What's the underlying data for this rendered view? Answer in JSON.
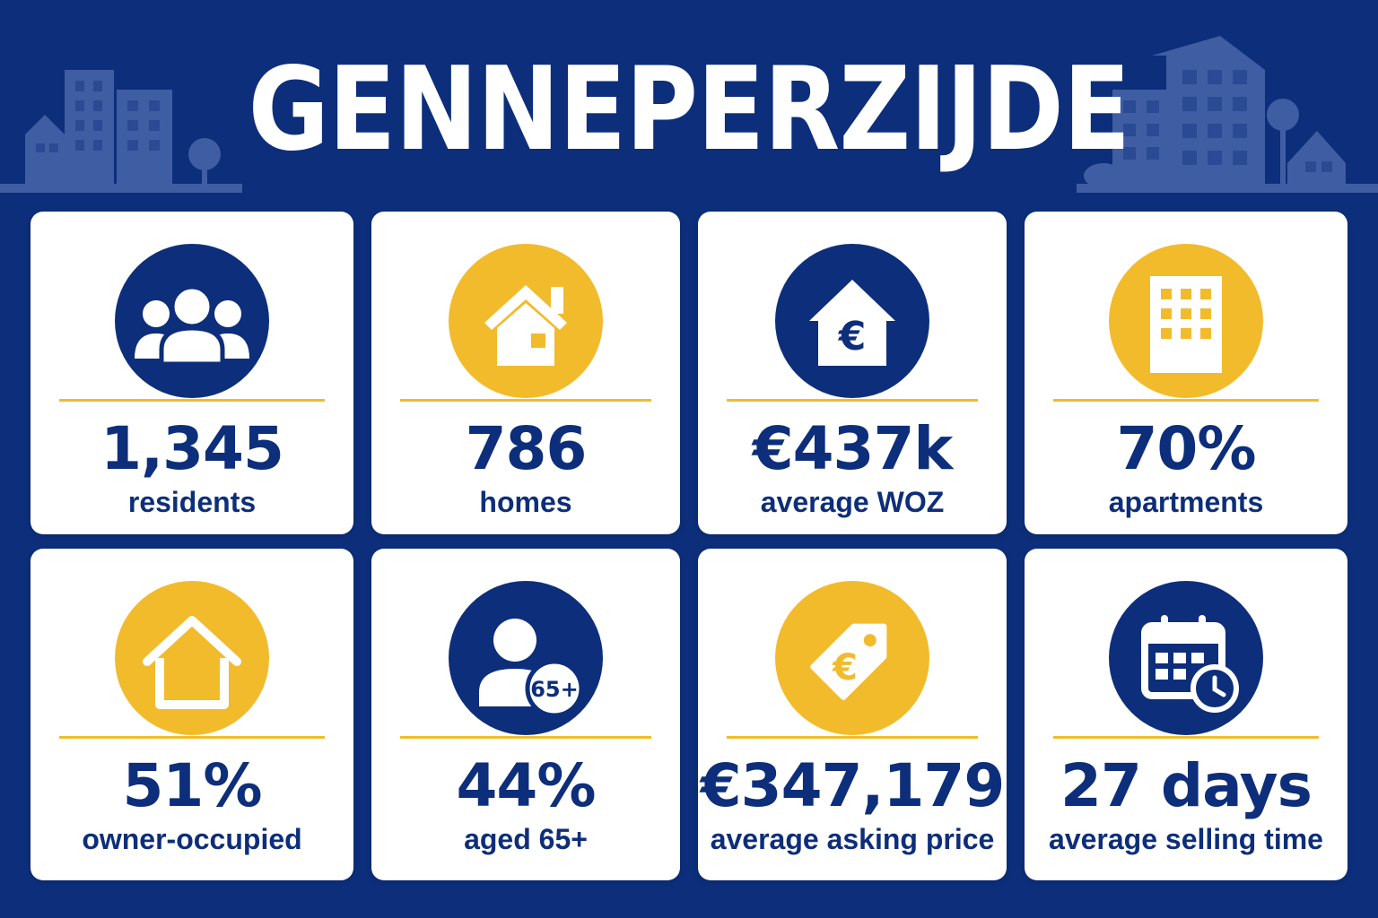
{
  "title": "GENNEPERZIJDE",
  "colors": {
    "background": "#0d2e7a",
    "accent": "#f2bb2c",
    "card": "#ffffff"
  },
  "stats": [
    {
      "icon": "people-icon",
      "value": "1,345",
      "label": "residents"
    },
    {
      "icon": "house-icon",
      "value": "786",
      "label": "homes"
    },
    {
      "icon": "house-euro-icon",
      "value": "€437k",
      "label": "average WOZ"
    },
    {
      "icon": "apartment-building-icon",
      "value": "70%",
      "label": "apartments"
    },
    {
      "icon": "house-check-icon",
      "value": "51%",
      "label": "owner-occupied"
    },
    {
      "icon": "person-65plus-icon",
      "value": "44%",
      "label": "aged 65+",
      "badge": "65+"
    },
    {
      "icon": "price-tag-euro-icon",
      "value": "€347,179",
      "label": "average asking price"
    },
    {
      "icon": "calendar-clock-icon",
      "value": "27 days",
      "label": "average selling time"
    }
  ]
}
